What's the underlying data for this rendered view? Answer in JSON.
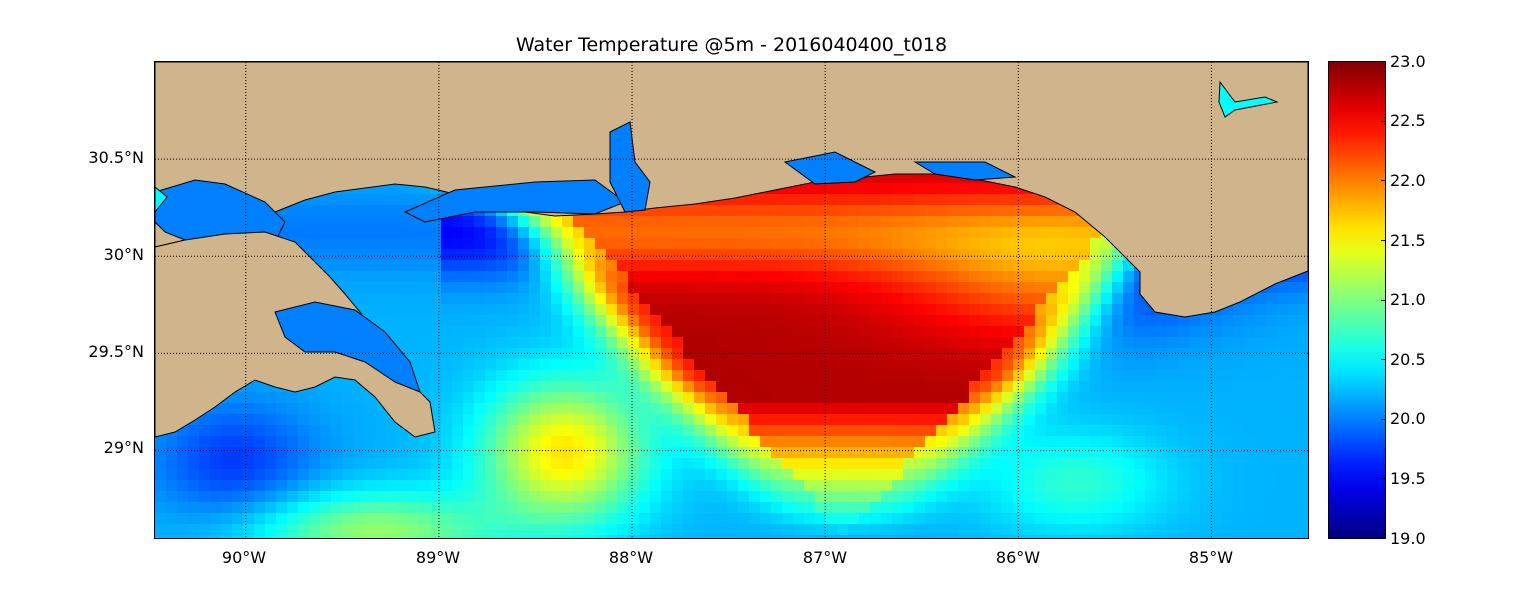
{
  "title": "Water Temperature @5m - 2016040400_t018",
  "map": {
    "lon_range": [
      -90.47,
      -84.5
    ],
    "lat_range": [
      28.55,
      31.0
    ],
    "lat_ticks": [
      {
        "value": 29.0,
        "label": "29°N"
      },
      {
        "value": 29.5,
        "label": "29.5°N"
      },
      {
        "value": 30.0,
        "label": "30°N"
      },
      {
        "value": 30.5,
        "label": "30.5°N"
      }
    ],
    "lon_ticks": [
      {
        "value": -90,
        "label": "90°W"
      },
      {
        "value": -89,
        "label": "89°W"
      },
      {
        "value": -88,
        "label": "88°W"
      },
      {
        "value": -87,
        "label": "87°W"
      },
      {
        "value": -86,
        "label": "86°W"
      },
      {
        "value": -85,
        "label": "85°W"
      }
    ],
    "grid": true,
    "land_color": "#d0b48c",
    "water_inland_color": "#0080ff",
    "lake_color": "#00ffff",
    "colormap": "jet"
  },
  "colorbar": {
    "min": 19.0,
    "max": 23.0,
    "ticks": [
      {
        "value": 19.0,
        "label": "19.0"
      },
      {
        "value": 19.5,
        "label": "19.5"
      },
      {
        "value": 20.0,
        "label": "20.0"
      },
      {
        "value": 20.5,
        "label": "20.5"
      },
      {
        "value": 21.0,
        "label": "21.0"
      },
      {
        "value": 21.5,
        "label": "21.5"
      },
      {
        "value": 22.0,
        "label": "22.0"
      },
      {
        "value": 22.5,
        "label": "22.5"
      },
      {
        "value": 23.0,
        "label": "23.0"
      }
    ]
  }
}
